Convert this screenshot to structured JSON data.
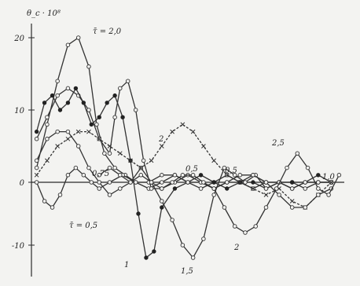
{
  "chart_data": {
    "type": "line",
    "title": "",
    "ylabel": "θ_c · 10⁸",
    "xlabel": "",
    "ylim": [
      -12,
      20
    ],
    "xlim": [
      0,
      12
    ],
    "y_ticks": [
      "20",
      "10",
      "0",
      "-10"
    ],
    "grid": false,
    "series": [
      {
        "marker": "open-circle",
        "x": [
          0.2,
          0.6,
          1.0,
          1.4,
          1.8,
          2.2,
          2.5,
          2.8,
          3.2,
          3.6,
          4.0,
          4.5,
          5.0,
          5.5,
          6.0,
          6.5,
          7.0,
          7.5,
          8.0,
          8.5,
          9.0,
          9.5,
          10.0,
          10.5,
          11.0,
          11.5
        ],
        "y": [
          2,
          8,
          14,
          19,
          20,
          16,
          8,
          4,
          2,
          1,
          0,
          -1,
          0,
          1,
          0,
          -1,
          0,
          1,
          0,
          -1,
          0,
          0,
          -1,
          0,
          0,
          0
        ]
      },
      {
        "marker": "open-circle",
        "x": [
          0.2,
          0.6,
          1.0,
          1.4,
          1.8,
          2.2,
          2.6,
          3.0,
          3.2,
          3.4,
          3.7,
          4.0,
          4.3,
          4.6,
          5.0,
          5.5,
          6.0,
          6.5,
          7.0,
          7.5,
          8.0,
          8.5,
          9.0,
          9.5,
          10.0,
          10.5,
          11.0,
          11.5
        ],
        "y": [
          6,
          9,
          12,
          13,
          12,
          10,
          6,
          4,
          9,
          13,
          14,
          10,
          3,
          -1,
          -1,
          0,
          1,
          0,
          -1,
          0,
          0,
          1,
          0,
          0,
          0,
          -1,
          0,
          0
        ]
      },
      {
        "marker": "filled-circle",
        "x": [
          0.2,
          0.5,
          0.8,
          1.1,
          1.4,
          1.7,
          2.0,
          2.3,
          2.6,
          2.9,
          3.2,
          3.5,
          3.8,
          4.1,
          4.4,
          4.7,
          5.0,
          5.5,
          6.0,
          6.5,
          7.0,
          7.5,
          8.0,
          8.5,
          9.0,
          9.5,
          10.0,
          10.5,
          11.0,
          11.5
        ],
        "y": [
          7,
          11,
          12,
          10,
          11,
          13,
          11,
          8,
          9,
          11,
          12,
          9,
          3,
          -5,
          -12,
          -11,
          -4,
          -1,
          0,
          1,
          0,
          -1,
          0,
          0,
          -1,
          0,
          0,
          0,
          1,
          0
        ]
      },
      {
        "marker": "open-circle",
        "x": [
          0.2,
          0.6,
          1.0,
          1.4,
          1.8,
          2.2,
          2.6,
          3.0,
          3.4,
          3.8,
          4.2,
          4.6,
          5.0,
          5.4,
          5.8,
          6.2,
          6.6,
          7.0,
          7.4,
          7.8,
          8.2,
          8.6,
          9.0,
          9.5,
          10.0,
          10.5,
          11.0,
          11.5
        ],
        "y": [
          3,
          6,
          7,
          7,
          5,
          2,
          0,
          -2,
          -1,
          0,
          2,
          0,
          -3,
          -6,
          -10,
          -12,
          -9,
          -2,
          2,
          1,
          0,
          1,
          -1,
          0,
          -1,
          0,
          0,
          0
        ]
      },
      {
        "marker": "cross",
        "x": [
          0.2,
          0.6,
          1.0,
          1.4,
          1.8,
          2.2,
          2.6,
          3.0,
          3.4,
          3.8,
          4.2,
          4.6,
          5.0,
          5.4,
          5.8,
          6.2,
          6.6,
          7.0,
          7.5,
          8.0,
          8.5,
          9.0,
          9.5,
          10.0,
          10.5,
          11.0,
          11.5
        ],
        "y": [
          1,
          3,
          5,
          6,
          7,
          7,
          6,
          5,
          4,
          3,
          2,
          3,
          5,
          7,
          8,
          7,
          5,
          3,
          1,
          0,
          -1,
          -2,
          -1,
          -3,
          -4,
          -2,
          0
        ]
      },
      {
        "marker": "open-circle",
        "x": [
          0.2,
          0.5,
          0.8,
          1.1,
          1.4,
          1.7,
          2.0,
          2.3,
          2.6,
          3.0,
          3.5,
          4.0,
          4.5,
          5.0,
          5.5,
          6.0,
          6.5,
          7.0,
          7.5,
          8.0,
          8.5,
          9.0,
          9.5,
          10.0,
          10.5,
          11.0,
          11.5
        ],
        "y": [
          0,
          -3,
          -4,
          -2,
          1,
          2,
          1,
          0,
          -1,
          0,
          1,
          0,
          0,
          1,
          1,
          0,
          0,
          -1,
          0,
          1,
          1,
          0,
          -2,
          -4,
          -4,
          -2,
          -1
        ]
      },
      {
        "marker": "open-circle",
        "x": [
          2.6,
          3.0,
          3.4,
          3.8,
          4.2,
          4.6,
          5.0,
          5.4,
          5.8,
          6.2,
          6.6,
          7.0,
          7.4,
          7.8,
          8.2,
          8.6,
          9.0,
          9.4,
          9.8,
          10.2,
          10.6,
          11.0,
          11.4,
          11.8
        ],
        "y": [
          1,
          2,
          1,
          0,
          1,
          0,
          -1,
          0,
          1,
          1,
          0,
          -1,
          -4,
          -7,
          -8,
          -7,
          -4,
          -1,
          2,
          4,
          2,
          -1,
          -2,
          1
        ]
      }
    ],
    "annotations": [
      "τ̄ = 2,0",
      "τ̄ = 0,5",
      "1",
      "1,5",
      "2",
      "2,5",
      "2",
      "0,5",
      "0,5",
      "0,75",
      "1,0"
    ]
  }
}
